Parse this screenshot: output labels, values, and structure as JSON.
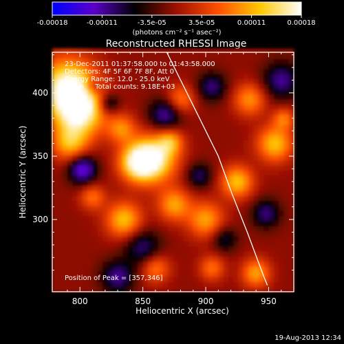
{
  "chart_data": {
    "type": "heatmap",
    "title": "Reconstructed RHESSI Image",
    "xlabel": "Heliocentric X (arcsec)",
    "ylabel": "Heliocentric Y (arcsec)",
    "xlim": [
      778,
      970
    ],
    "ylim": [
      243,
      432
    ],
    "x_ticks": [
      800,
      850,
      900,
      950
    ],
    "y_ticks": [
      300,
      350,
      400
    ],
    "colorbar": {
      "label": "(photons cm⁻² s⁻¹ asec⁻²)",
      "range": [
        -0.00018,
        0.00018
      ],
      "ticks": [
        "-0.00018",
        "-0.00011",
        "-3.5e-05",
        "3.5e-05",
        "0.00011",
        "0.00018"
      ],
      "colors": [
        "#0000ff",
        "#5a00c8",
        "#000000",
        "#a01000",
        "#ff5000",
        "#ffc800",
        "#ffffff"
      ]
    },
    "annotations": [
      "23-Dec-2011 01:37:58.000 to 01:43:58.000",
      "Detectors: 4F 5F 6F 7F 8F, Att 0",
      "Energy Range: 12.0 - 25.0 keV",
      "Clean     Total counts: 9.18E+03"
    ],
    "peak_label": "Position of Peak = [357,346]",
    "limb_curve": [
      [
        869,
        432
      ],
      [
        880,
        410
      ],
      [
        895,
        380
      ],
      [
        910,
        350
      ],
      [
        921,
        320
      ],
      [
        933,
        290
      ],
      [
        945,
        258
      ],
      [
        949,
        248
      ]
    ],
    "sources": [
      {
        "x": 790,
        "y": 405,
        "w": 16,
        "v": 1.0
      },
      {
        "x": 800,
        "y": 385,
        "w": 14,
        "v": 0.9
      },
      {
        "x": 792,
        "y": 360,
        "w": 10,
        "v": 0.6
      },
      {
        "x": 845,
        "y": 345,
        "w": 10,
        "v": 0.7
      },
      {
        "x": 858,
        "y": 348,
        "w": 13,
        "v": 1.0
      },
      {
        "x": 833,
        "y": 372,
        "w": 8,
        "v": 0.5
      },
      {
        "x": 872,
        "y": 362,
        "w": 7,
        "v": 0.5
      },
      {
        "x": 880,
        "y": 395,
        "w": 8,
        "v": 0.5
      },
      {
        "x": 835,
        "y": 300,
        "w": 10,
        "v": 0.7
      },
      {
        "x": 875,
        "y": 312,
        "w": 9,
        "v": 0.6
      },
      {
        "x": 810,
        "y": 318,
        "w": 7,
        "v": 0.45
      },
      {
        "x": 900,
        "y": 300,
        "w": 10,
        "v": 0.6
      },
      {
        "x": 925,
        "y": 330,
        "w": 9,
        "v": 0.7
      },
      {
        "x": 935,
        "y": 395,
        "w": 9,
        "v": 0.55
      },
      {
        "x": 955,
        "y": 360,
        "w": 10,
        "v": 0.7
      },
      {
        "x": 962,
        "y": 380,
        "w": 6,
        "v": 0.45
      },
      {
        "x": 940,
        "y": 258,
        "w": 8,
        "v": 0.6
      },
      {
        "x": 905,
        "y": 262,
        "w": 7,
        "v": 0.45
      },
      {
        "x": 860,
        "y": 262,
        "w": 8,
        "v": 0.5
      },
      {
        "x": 802,
        "y": 340,
        "w": 8,
        "v": -0.75
      },
      {
        "x": 868,
        "y": 383,
        "w": 9,
        "v": -0.6
      },
      {
        "x": 823,
        "y": 392,
        "w": 6,
        "v": -0.5
      },
      {
        "x": 905,
        "y": 405,
        "w": 8,
        "v": -0.5
      },
      {
        "x": 960,
        "y": 410,
        "w": 10,
        "v": -0.55
      },
      {
        "x": 915,
        "y": 285,
        "w": 7,
        "v": -0.4
      },
      {
        "x": 850,
        "y": 278,
        "w": 10,
        "v": -0.5
      },
      {
        "x": 830,
        "y": 255,
        "w": 9,
        "v": -0.55
      },
      {
        "x": 948,
        "y": 305,
        "w": 8,
        "v": -0.5
      },
      {
        "x": 895,
        "y": 335,
        "w": 7,
        "v": -0.45
      },
      {
        "x": 810,
        "y": 405,
        "w": 5,
        "v": -0.35
      }
    ]
  },
  "footer": {
    "date": "19-Aug-2013 12:34"
  }
}
